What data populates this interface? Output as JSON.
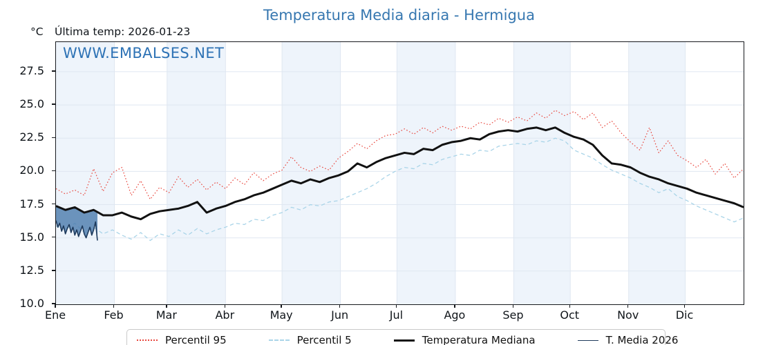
{
  "header": {
    "title": "Temperatura Media diaria - Hermigua",
    "unit_label": "°C",
    "last_temp_label": "Última temp: 2026-01-23",
    "watermark": "WWW.EMBALSES.NET",
    "title_color": "#3677b0",
    "watermark_color": "#2d72b5"
  },
  "chart_data": {
    "type": "line",
    "title": "Temperatura Media diaria - Hermigua",
    "ylabel": "°C",
    "xlim_days": [
      0,
      365
    ],
    "ylim": [
      10.0,
      29.73
    ],
    "yticks": [
      10.0,
      12.5,
      15.0,
      17.5,
      20.0,
      22.5,
      25.0,
      27.5
    ],
    "month_labels": [
      "Ene",
      "Feb",
      "Mar",
      "Abr",
      "May",
      "Jun",
      "Jul",
      "Ago",
      "Sep",
      "Oct",
      "Nov",
      "Dic"
    ],
    "month_boundaries_day": [
      0,
      31,
      59,
      90,
      120,
      151,
      181,
      212,
      243,
      273,
      304,
      334,
      365
    ],
    "shaded_month_indices": [
      0,
      2,
      4,
      6,
      8,
      10
    ],
    "band_color": "#eef4fb",
    "grid_color": "#dfe7f1",
    "grid_on": true,
    "legend_position": "bottom",
    "series": [
      {
        "name": "Percentil 95",
        "color": "#e8453c",
        "style": "dotted",
        "width": 1.2,
        "x_start": 0,
        "x_step": 5,
        "values": [
          18.7,
          18.3,
          18.6,
          18.2,
          20.2,
          18.5,
          19.9,
          20.3,
          18.2,
          19.3,
          17.9,
          18.8,
          18.4,
          19.6,
          18.8,
          19.4,
          18.6,
          19.2,
          18.7,
          19.5,
          19.0,
          19.9,
          19.3,
          19.8,
          20.1,
          21.1,
          20.3,
          20.0,
          20.4,
          20.1,
          21.0,
          21.5,
          22.1,
          21.7,
          22.3,
          22.7,
          22.8,
          23.2,
          22.8,
          23.3,
          22.9,
          23.4,
          23.1,
          23.4,
          23.2,
          23.7,
          23.5,
          24.0,
          23.7,
          24.1,
          23.8,
          24.4,
          24.0,
          24.6,
          24.2,
          24.5,
          23.9,
          24.4,
          23.3,
          23.8,
          22.9,
          22.2,
          21.6,
          23.3,
          21.4,
          22.3,
          21.2,
          20.8,
          20.3,
          20.9,
          19.8,
          20.6,
          19.5,
          20.2
        ]
      },
      {
        "name": "Percentil 5",
        "color": "#a9d4e8",
        "style": "dashed",
        "width": 1.3,
        "x_start": 0,
        "x_step": 5,
        "values": [
          15.9,
          15.6,
          16.1,
          15.4,
          15.8,
          15.3,
          15.6,
          15.2,
          14.9,
          15.4,
          14.8,
          15.3,
          15.1,
          15.6,
          15.2,
          15.7,
          15.3,
          15.6,
          15.8,
          16.1,
          16.0,
          16.4,
          16.3,
          16.7,
          16.9,
          17.3,
          17.1,
          17.5,
          17.4,
          17.7,
          17.8,
          18.1,
          18.4,
          18.7,
          19.1,
          19.6,
          20.0,
          20.3,
          20.2,
          20.6,
          20.5,
          20.9,
          21.1,
          21.3,
          21.2,
          21.6,
          21.5,
          21.9,
          22.0,
          22.1,
          22.0,
          22.3,
          22.2,
          22.5,
          22.3,
          21.6,
          21.3,
          21.0,
          20.5,
          20.1,
          19.8,
          19.5,
          19.1,
          18.8,
          18.4,
          18.7,
          18.1,
          17.8,
          17.4,
          17.1,
          16.8,
          16.5,
          16.2,
          16.5
        ]
      },
      {
        "name": "Temperatura Mediana",
        "color": "#111111",
        "style": "solid",
        "width": 3,
        "x_start": 0,
        "x_step": 5,
        "values": [
          17.4,
          17.1,
          17.3,
          16.9,
          17.1,
          16.7,
          16.7,
          16.9,
          16.6,
          16.4,
          16.8,
          17.0,
          17.1,
          17.2,
          17.4,
          17.7,
          16.9,
          17.2,
          17.4,
          17.7,
          17.9,
          18.2,
          18.4,
          18.7,
          19.0,
          19.3,
          19.1,
          19.4,
          19.2,
          19.5,
          19.7,
          20.0,
          20.6,
          20.3,
          20.7,
          21.0,
          21.2,
          21.4,
          21.3,
          21.7,
          21.6,
          22.0,
          22.2,
          22.3,
          22.5,
          22.4,
          22.8,
          23.0,
          23.1,
          23.0,
          23.2,
          23.3,
          23.1,
          23.3,
          22.9,
          22.6,
          22.4,
          22.0,
          21.2,
          20.6,
          20.5,
          20.3,
          19.9,
          19.6,
          19.4,
          19.1,
          18.9,
          18.7,
          18.4,
          18.2,
          18.0,
          17.8,
          17.6,
          17.3
        ]
      },
      {
        "name": "T. Media 2026",
        "color": "#1e3a5c",
        "style": "solid",
        "width": 1.6,
        "x_start": 0,
        "x_step": 1,
        "values": [
          16.3,
          15.8,
          16.1,
          15.5,
          15.9,
          15.3,
          15.7,
          16.0,
          15.4,
          15.8,
          15.2,
          15.6,
          15.1,
          15.5,
          15.9,
          15.3,
          15.0,
          15.4,
          15.8,
          15.2,
          15.6,
          16.2,
          14.8
        ]
      }
    ],
    "fill_between": {
      "upper_series": "Temperatura Mediana",
      "lower_series": "T. Media 2026",
      "color": "rgba(70,119,170,0.78)",
      "x_range_days": [
        0,
        22
      ]
    }
  }
}
